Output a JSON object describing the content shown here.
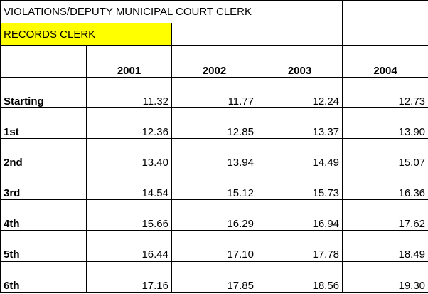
{
  "header": {
    "title": "VIOLATIONS/DEPUTY MUNICIPAL COURT CLERK",
    "subtitle": "RECORDS CLERK"
  },
  "colors": {
    "highlight": "#ffff00",
    "grid_lines": "#000000"
  },
  "table": {
    "years": [
      "2001",
      "2002",
      "2003",
      "2004"
    ],
    "rows": [
      {
        "step": "Starting",
        "values": [
          "11.32",
          "11.77",
          "12.24",
          "12.73"
        ]
      },
      {
        "step": "1st",
        "values": [
          "12.36",
          "12.85",
          "13.37",
          "13.90"
        ]
      },
      {
        "step": "2nd",
        "values": [
          "13.40",
          "13.94",
          "14.49",
          "15.07"
        ]
      },
      {
        "step": "3rd",
        "values": [
          "14.54",
          "15.12",
          "15.73",
          "16.36"
        ]
      },
      {
        "step": "4th",
        "values": [
          "15.66",
          "16.29",
          "16.94",
          "17.62"
        ]
      },
      {
        "step": "5th",
        "values": [
          "16.44",
          "17.10",
          "17.78",
          "18.49"
        ]
      },
      {
        "step": "6th",
        "values": [
          "17.16",
          "17.85",
          "18.56",
          "19.30"
        ]
      }
    ]
  }
}
